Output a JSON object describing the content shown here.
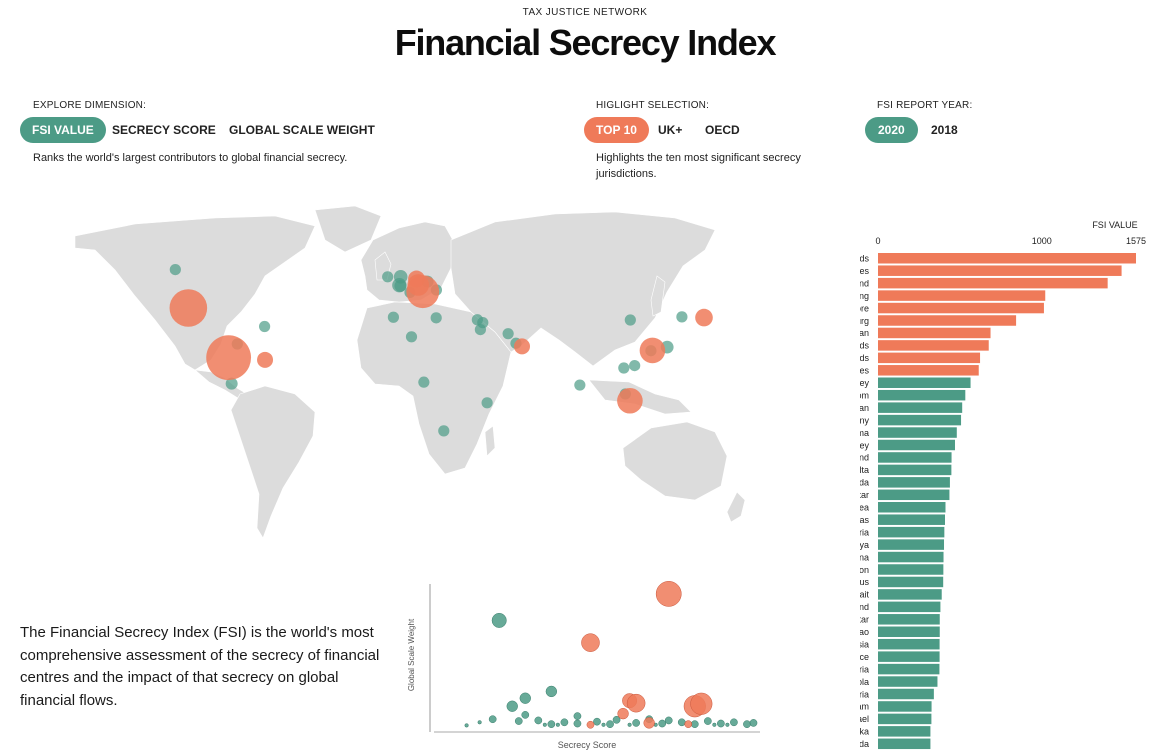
{
  "header": {
    "org": "TAX JUSTICE NETWORK",
    "title": "Financial Secrecy Index"
  },
  "controls": {
    "dimension": {
      "label": "EXPLORE DIMENSION:",
      "options": [
        "FSI VALUE",
        "SECRECY SCORE",
        "GLOBAL SCALE WEIGHT"
      ],
      "selected": "FSI VALUE",
      "description": "Ranks the world's largest contributors to global financial secrecy."
    },
    "highlight": {
      "label": "HIGLIGHT SELECTION:",
      "options": [
        "TOP 10",
        "UK+",
        "OECD"
      ],
      "selected": "TOP 10",
      "description_line1": "Highlights the ten most significant secrecy",
      "description_line2": "jurisdictions."
    },
    "year": {
      "label": "FSI REPORT YEAR:",
      "options": [
        "2020",
        "2018"
      ],
      "selected": "2020"
    }
  },
  "intro": "The Financial Secrecy Index (FSI) is the world's most comprehensive assessment of the secrecy of financial centres and the impact of that secrecy on global financial flows.",
  "colors": {
    "highlight": "#ef7a59",
    "base": "#4c9b86",
    "land": "#dcdcdc"
  },
  "chart_data": [
    {
      "type": "bar",
      "orientation": "horizontal",
      "title": "FSI VALUE",
      "xlim": [
        0,
        1575
      ],
      "ticks": [
        0,
        1000,
        1575
      ],
      "categories": [
        "Cayman Islands",
        "United States",
        "Switzerland",
        "Hong Kong",
        "Singapore",
        "Luxembourg",
        "Japan",
        "Netherlands",
        "British Virgin Islands",
        "United Arab Emirates",
        "Guernsey",
        "United Kingdom",
        "Taiwan",
        "Germany",
        "Panama",
        "Jersey",
        "Thailand",
        "Malta",
        "Canada",
        "Qatar",
        "South Korea",
        "Bahamas",
        "Algeria",
        "Kenya",
        "China",
        "Lebanon",
        "Cyprus",
        "Kuwait",
        "Ireland",
        "Gibraltar",
        "Macao",
        "Malaysia",
        "France",
        "Nigeria",
        "Angola",
        "Austria",
        "Vietnam",
        "Israel",
        "Sri Lanka",
        "Bermuda"
      ],
      "values": [
        1575,
        1487,
        1402,
        1021,
        1013,
        843,
        687,
        676,
        623,
        615,
        565,
        533,
        514,
        507,
        481,
        470,
        449,
        448,
        439,
        436,
        412,
        409,
        405,
        403,
        400,
        399,
        398,
        389,
        381,
        377,
        377,
        376,
        376,
        375,
        363,
        341,
        327,
        326,
        320,
        320
      ],
      "highlighted_count": 10
    },
    {
      "type": "scatter",
      "xlabel": "Secrecy Score",
      "ylabel": "Global Scale Weight",
      "xlim": [
        40,
        90
      ],
      "ylim": [
        0,
        23
      ],
      "series": [
        {
          "name": "Top 10",
          "points": [
            [
              76,
              21.4,
              7
            ],
            [
              64,
              13.5,
              5
            ],
            [
              70,
              4.1,
              4
            ],
            [
              71,
              3.7,
              5
            ],
            [
              80,
              3.2,
              6
            ],
            [
              81,
              3.6,
              6
            ],
            [
              69,
              2.0,
              3
            ],
            [
              73,
              0.5,
              3
            ],
            [
              64,
              0.2,
              2
            ],
            [
              79,
              0.3,
              2
            ]
          ]
        },
        {
          "name": "Other",
          "points": [
            [
              50,
              17.1,
              4
            ],
            [
              54,
              4.5,
              3
            ],
            [
              58,
              5.6,
              3
            ],
            [
              62,
              1.6,
              2
            ],
            [
              52,
              3.2,
              3
            ],
            [
              49,
              1.1,
              2
            ],
            [
              47,
              0.6,
              1
            ],
            [
              54,
              1.8,
              2
            ],
            [
              56,
              0.9,
              2
            ],
            [
              58,
              0.3,
              2
            ],
            [
              60,
              0.6,
              2
            ],
            [
              62,
              0.4,
              2
            ],
            [
              65,
              0.7,
              2
            ],
            [
              67,
              0.3,
              2
            ],
            [
              68,
              1.0,
              2
            ],
            [
              71,
              0.5,
              2
            ],
            [
              73,
              1.1,
              2
            ],
            [
              75,
              0.4,
              2
            ],
            [
              76,
              0.9,
              2
            ],
            [
              78,
              0.6,
              2
            ],
            [
              80,
              0.3,
              2
            ],
            [
              82,
              0.8,
              2
            ],
            [
              84,
              0.4,
              2
            ],
            [
              86,
              0.6,
              2
            ],
            [
              88,
              0.3,
              2
            ],
            [
              89,
              0.5,
              2
            ],
            [
              66,
              0.2,
              1
            ],
            [
              70,
              0.2,
              1
            ],
            [
              74,
              0.2,
              1
            ],
            [
              83,
              0.2,
              1
            ],
            [
              57,
              0.2,
              1
            ],
            [
              59,
              0.2,
              1
            ],
            [
              53,
              0.8,
              2
            ],
            [
              45,
              0.1,
              1
            ],
            [
              85,
              0.2,
              1
            ]
          ]
        }
      ]
    },
    {
      "type": "scatter",
      "title": "map-bubbles",
      "series": [
        {
          "name": "Top 10",
          "points": [
            [
              -81.4,
              19.3,
              5.6
            ],
            [
              -100,
              40,
              4.7
            ],
            [
              8.2,
              46.8,
              4.1
            ],
            [
              114.2,
              22.3,
              3.2
            ],
            [
              103.8,
              1.35,
              3.2
            ],
            [
              6.1,
              49.6,
              2.7
            ],
            [
              138,
              36,
              2.2
            ],
            [
              5.3,
              52.1,
              2.1
            ],
            [
              -64.6,
              18.4,
              2.0
            ],
            [
              54,
              24,
              2.0
            ]
          ]
        },
        {
          "name": "Other",
          "points": [
            [
              -2.6,
              49.5,
              1.8
            ],
            [
              -2,
              53,
              1.7
            ],
            [
              121,
              23.7,
              1.6
            ],
            [
              10.4,
              51,
              1.5
            ],
            [
              -80,
              8.5,
              1.5
            ],
            [
              -2.1,
              49.2,
              1.5
            ],
            [
              101,
              15,
              1.4
            ],
            [
              14.4,
              35.9,
              1.4
            ],
            [
              -106,
              56,
              1.4
            ],
            [
              51.2,
              25.3,
              1.4
            ],
            [
              127.8,
              36.3,
              1.4
            ],
            [
              -77.4,
              25,
              1.4
            ],
            [
              3,
              28,
              1.4
            ],
            [
              37.9,
              0.5,
              1.4
            ],
            [
              104,
              35,
              1.4
            ],
            [
              35.9,
              33.9,
              1.4
            ],
            [
              33.4,
              35.1,
              1.4
            ],
            [
              47.6,
              29.3,
              1.4
            ],
            [
              -8,
              53,
              1.4
            ],
            [
              -5.35,
              36.14,
              1.4
            ],
            [
              113.5,
              22.2,
              1.4
            ],
            [
              101.7,
              4.2,
              1.4
            ],
            [
              2.3,
              46.5,
              1.4
            ],
            [
              8.7,
              9.1,
              1.4
            ],
            [
              17.9,
              -11.2,
              1.4
            ],
            [
              14.5,
              47.5,
              1.4
            ],
            [
              106,
              16,
              1.4
            ],
            [
              34.8,
              31,
              1.4
            ],
            [
              80.7,
              7.9,
              1.4
            ],
            [
              -64.8,
              32.3,
              1.4
            ]
          ]
        }
      ]
    }
  ]
}
